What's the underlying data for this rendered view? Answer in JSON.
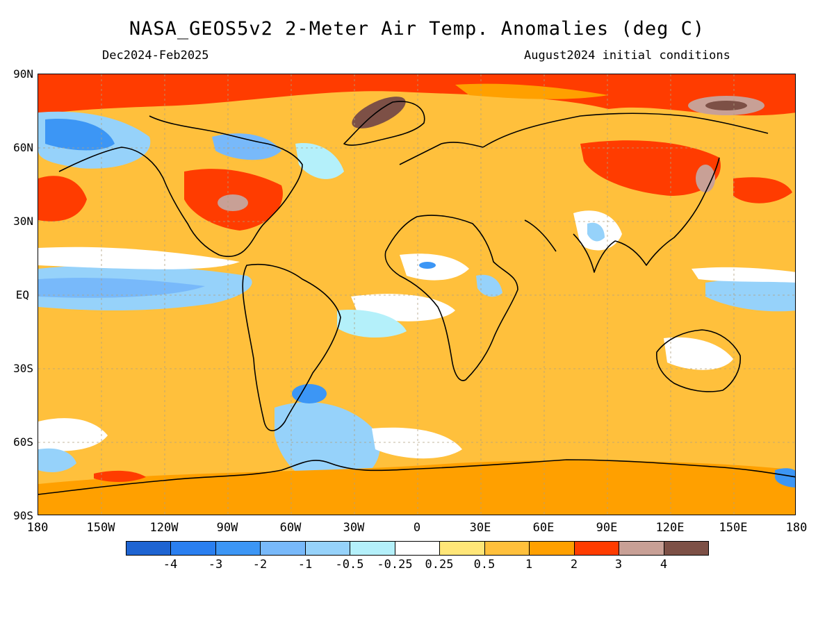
{
  "header": {
    "title": "NASA_GEOS5v2 2-Meter Air Temp. Anomalies (deg C)",
    "period": "Dec2024-Feb2025",
    "init": "August2024 initial conditions"
  },
  "axes": {
    "lat_labels": [
      "90N",
      "60N",
      "30N",
      "EQ",
      "30S",
      "60S",
      "90S"
    ],
    "lon_labels": [
      "180",
      "150W",
      "120W",
      "90W",
      "60W",
      "30W",
      "0",
      "30E",
      "60E",
      "90E",
      "120E",
      "150E",
      "180"
    ]
  },
  "legend": {
    "colors": [
      "#1e64d2",
      "#2a7ff0",
      "#3c96f5",
      "#78b9fa",
      "#96d2fa",
      "#b4f0fa",
      "#ffffff",
      "#ffe678",
      "#ffc03c",
      "#ffa000",
      "#ff3c00",
      "#c8a096",
      "#7d5046"
    ],
    "labels": [
      "-4",
      "-3",
      "-2",
      "-1",
      "-0.5",
      "-0.25",
      "0.25",
      "0.5",
      "1",
      "2",
      "3",
      "4"
    ]
  },
  "map": {
    "background_color": "#ffc03c",
    "regions": [
      {
        "name": "arctic-band",
        "value": 3,
        "color": "#ff3c00"
      },
      {
        "name": "greenland-max",
        "value": 4,
        "color": "#7d5046"
      },
      {
        "name": "siberia-max",
        "value": 4,
        "color": "#7d5046"
      },
      {
        "name": "alaska-cold",
        "value": -2,
        "color": "#3c96f5"
      },
      {
        "name": "east-pacific-cold",
        "value": -1,
        "color": "#78b9fa"
      },
      {
        "name": "east-us-warm",
        "value": 3,
        "color": "#ff3c00"
      },
      {
        "name": "north-asia-warm",
        "value": 3,
        "color": "#ff3c00"
      },
      {
        "name": "antarctic-warm",
        "value": 2,
        "color": "#ffa000"
      },
      {
        "name": "south-atlantic-cold",
        "value": -1,
        "color": "#96d2fa"
      }
    ]
  }
}
